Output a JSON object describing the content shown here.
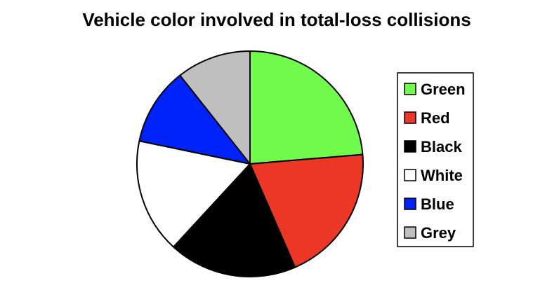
{
  "chart_data": {
    "type": "pie",
    "title": "Vehicle color involved in total-loss collisions",
    "categories": [
      "Green",
      "Red",
      "Black",
      "White",
      "Blue",
      "Grey"
    ],
    "values": [
      24.5,
      20.5,
      19.0,
      17.0,
      11.5,
      11.0
    ],
    "unit": "",
    "colors": [
      "#71fb4d",
      "#ec3626",
      "#000000",
      "#ffffff",
      "#0022fb",
      "#bfbfbf"
    ],
    "start_angle_deg": 0,
    "direction": "clockwise",
    "legend": {
      "placement": "right",
      "entries": [
        "Green",
        "Red",
        "Black",
        "White",
        "Blue",
        "Grey"
      ]
    }
  }
}
